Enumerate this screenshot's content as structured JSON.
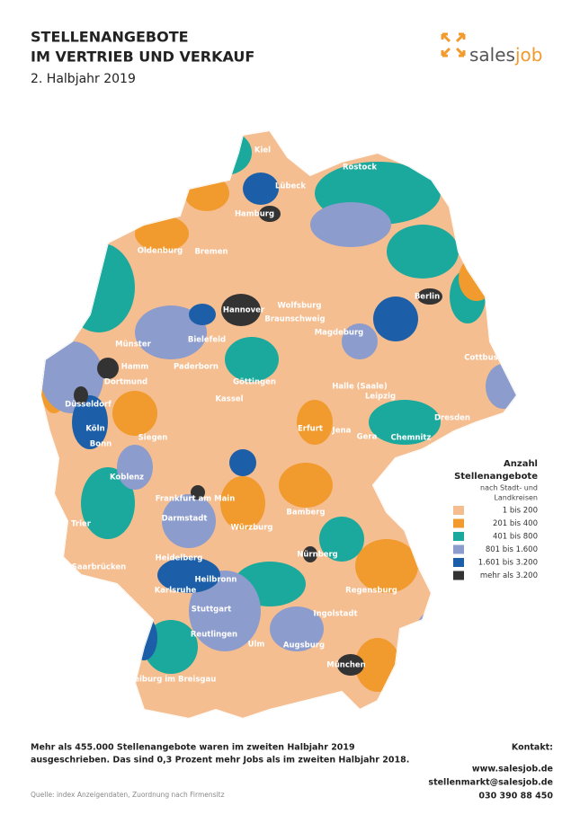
{
  "header": {
    "title_line1": "STELLENANGEBOTE",
    "title_line2": "IM VERTRIEB UND VERKAUF",
    "subtitle": "2. Halbjahr 2019"
  },
  "logo": {
    "part1": "sales",
    "part2": "job"
  },
  "cities": [
    "Kiel",
    "Rostock",
    "Lübeck",
    "Hamburg",
    "Oldenburg",
    "Bremen",
    "Berlin",
    "Hannover",
    "Wolfsburg",
    "Braunschweig",
    "Magdeburg",
    "Münster",
    "Bielefeld",
    "Hamm",
    "Paderborn",
    "Dortmund",
    "Cottbus",
    "Göttingen",
    "Halle (Saale)",
    "Leipzig",
    "Düsseldorf",
    "Kassel",
    "Dresden",
    "Köln",
    "Erfurt",
    "Jena",
    "Gera",
    "Chemnitz",
    "Bonn",
    "Siegen",
    "Koblenz",
    "Frankfurt am Main",
    "Darmstadt",
    "Bamberg",
    "Trier",
    "Würzburg",
    "Saarbrücken",
    "Heidelberg",
    "Nürnberg",
    "Heilbronn",
    "Karlsruhe",
    "Regensburg",
    "Stuttgart",
    "Ingolstadt",
    "Reutlingen",
    "Ulm",
    "Augsburg",
    "München",
    "Freiburg im Breisgau"
  ],
  "legend": {
    "title_line1": "Anzahl",
    "title_line2": "Stellenangebote",
    "subtitle_line1": "nach Stadt- und",
    "subtitle_line2": "Landkreisen",
    "items": [
      {
        "label": "1 bis 200",
        "color": "#f5be91"
      },
      {
        "label": "201 bis 400",
        "color": "#f19a2e"
      },
      {
        "label": "401 bis 800",
        "color": "#1aa99c"
      },
      {
        "label": "801 bis 1.600",
        "color": "#8c9ccc"
      },
      {
        "label": "1.601 bis 3.200",
        "color": "#1c5fa8"
      },
      {
        "label": "mehr als 3.200",
        "color": "#333333"
      }
    ]
  },
  "footer": {
    "line1": "Mehr als 455.000 Stellenangebote waren im zweiten Halbjahr 2019",
    "line2": "ausgeschrieben. Das sind 0,3 Prozent mehr Jobs als im zweiten Halbjahr 2018.",
    "source": "Quelle: index Anzeigendaten, Zuordnung nach Firmensitz"
  },
  "contact": {
    "heading": "Kontakt:",
    "web": "www.salesjob.de",
    "email": "stellenmarkt@salesjob.de",
    "phone": "030 390 88 450"
  }
}
